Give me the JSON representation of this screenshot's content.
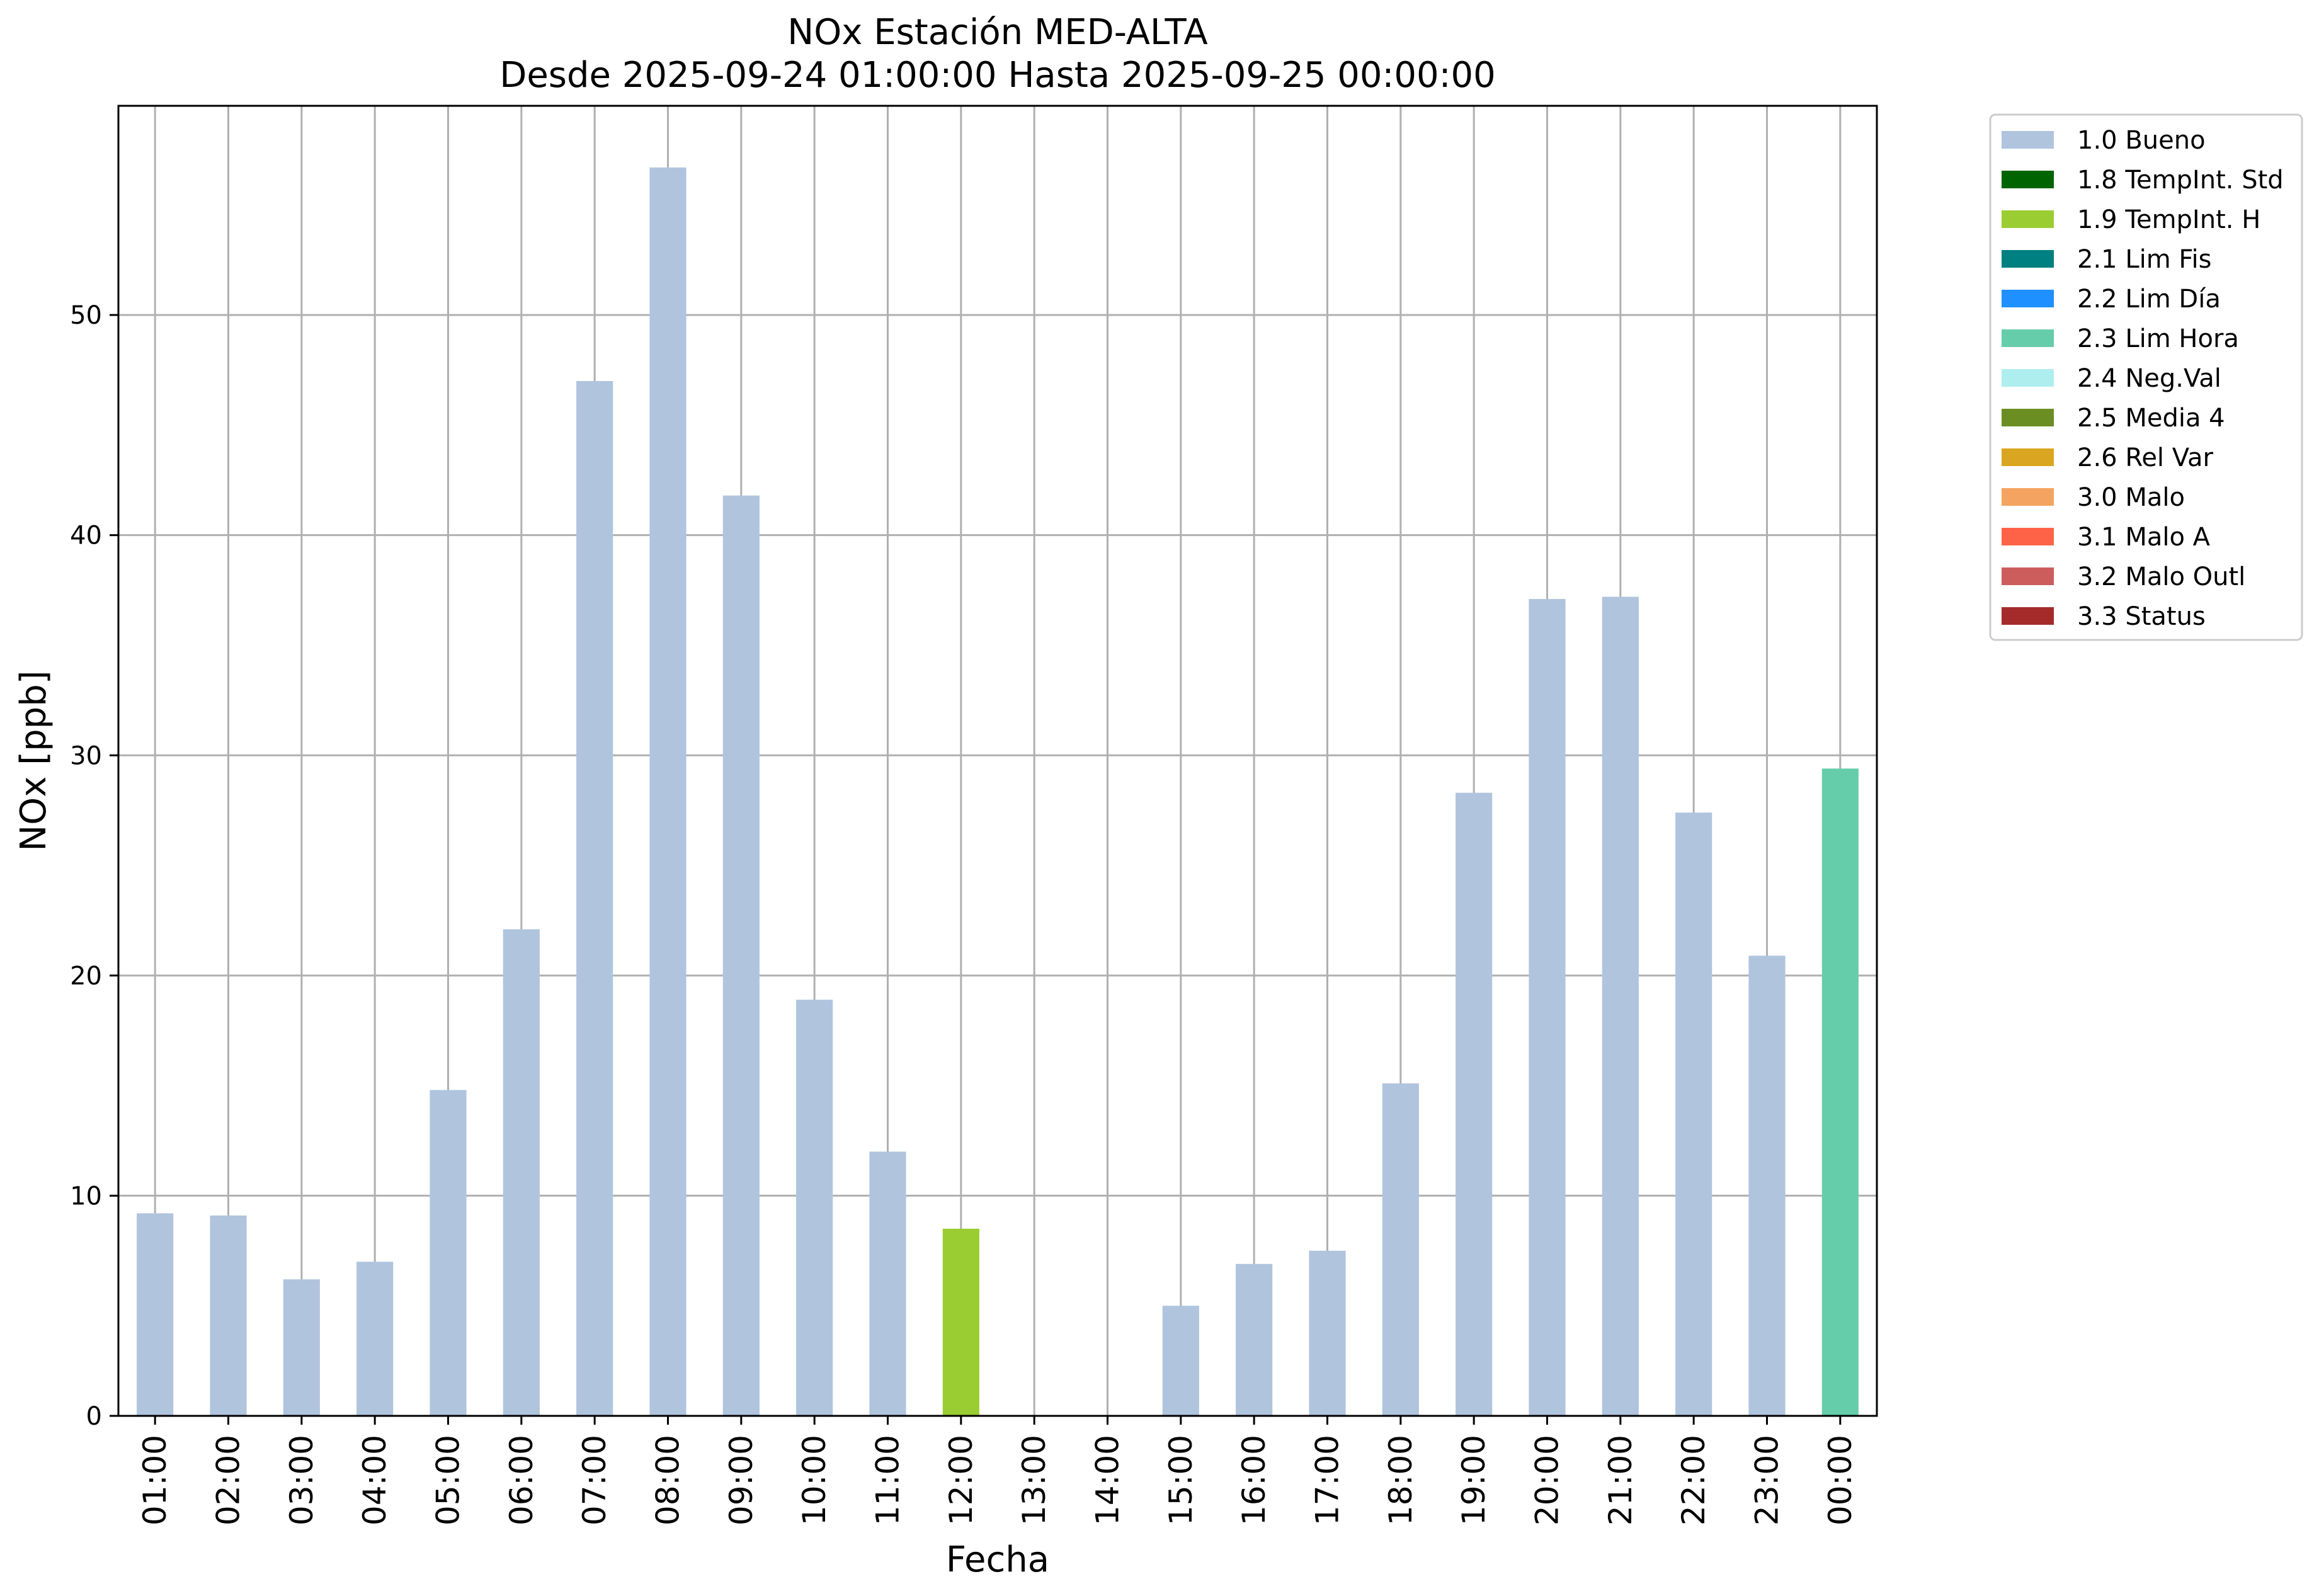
{
  "chart_data": {
    "type": "bar",
    "title": "NOx Estación MED-ALTA",
    "subtitle": "Desde 2025-09-24 01:00:00 Hasta 2025-09-25 00:00:00",
    "xlabel": "Fecha",
    "ylabel": "NOx [ppb]",
    "ylim": [
      0,
      59.5
    ],
    "yticks": [
      0,
      10,
      20,
      30,
      40,
      50
    ],
    "grid": true,
    "legend_position": "outside-right-top",
    "categories": [
      "01:00",
      "02:00",
      "03:00",
      "04:00",
      "05:00",
      "06:00",
      "07:00",
      "08:00",
      "09:00",
      "10:00",
      "11:00",
      "12:00",
      "13:00",
      "14:00",
      "15:00",
      "16:00",
      "17:00",
      "18:00",
      "19:00",
      "20:00",
      "21:00",
      "22:00",
      "23:00",
      "00:00"
    ],
    "values": [
      9.2,
      9.1,
      6.2,
      7.0,
      14.8,
      22.1,
      47.0,
      56.7,
      41.8,
      18.9,
      12.0,
      8.5,
      null,
      null,
      5.0,
      6.9,
      7.5,
      15.1,
      28.3,
      37.1,
      37.2,
      27.4,
      20.9,
      29.4
    ],
    "flags": [
      "1.0 Bueno",
      "1.0 Bueno",
      "1.0 Bueno",
      "1.0 Bueno",
      "1.0 Bueno",
      "1.0 Bueno",
      "1.0 Bueno",
      "1.0 Bueno",
      "1.0 Bueno",
      "1.0 Bueno",
      "1.0 Bueno",
      "1.9 TempInt. H",
      null,
      null,
      "1.0 Bueno",
      "1.0 Bueno",
      "1.0 Bueno",
      "1.0 Bueno",
      "1.0 Bueno",
      "1.0 Bueno",
      "1.0 Bueno",
      "1.0 Bueno",
      "1.0 Bueno",
      "2.3 Lim Hora"
    ],
    "legend": [
      {
        "name": "1.0 Bueno",
        "color": "#b0c4de"
      },
      {
        "name": "1.8 TempInt. Std",
        "color": "#006400"
      },
      {
        "name": "1.9 TempInt. H",
        "color": "#9acd32"
      },
      {
        "name": "2.1 Lim Fis",
        "color": "#008080"
      },
      {
        "name": "2.2 Lim Día",
        "color": "#1e90ff"
      },
      {
        "name": "2.3 Lim Hora",
        "color": "#66cdaa"
      },
      {
        "name": "2.4 Neg.Val",
        "color": "#afeeee"
      },
      {
        "name": "2.5 Media 4",
        "color": "#6b8e23"
      },
      {
        "name": "2.6 Rel Var",
        "color": "#daa520"
      },
      {
        "name": "3.0 Malo",
        "color": "#f4a460"
      },
      {
        "name": "3.1 Malo A",
        "color": "#ff6347"
      },
      {
        "name": "3.2 Malo Outl",
        "color": "#cd5c5c"
      },
      {
        "name": "3.3 Status",
        "color": "#a52a2a"
      }
    ]
  }
}
